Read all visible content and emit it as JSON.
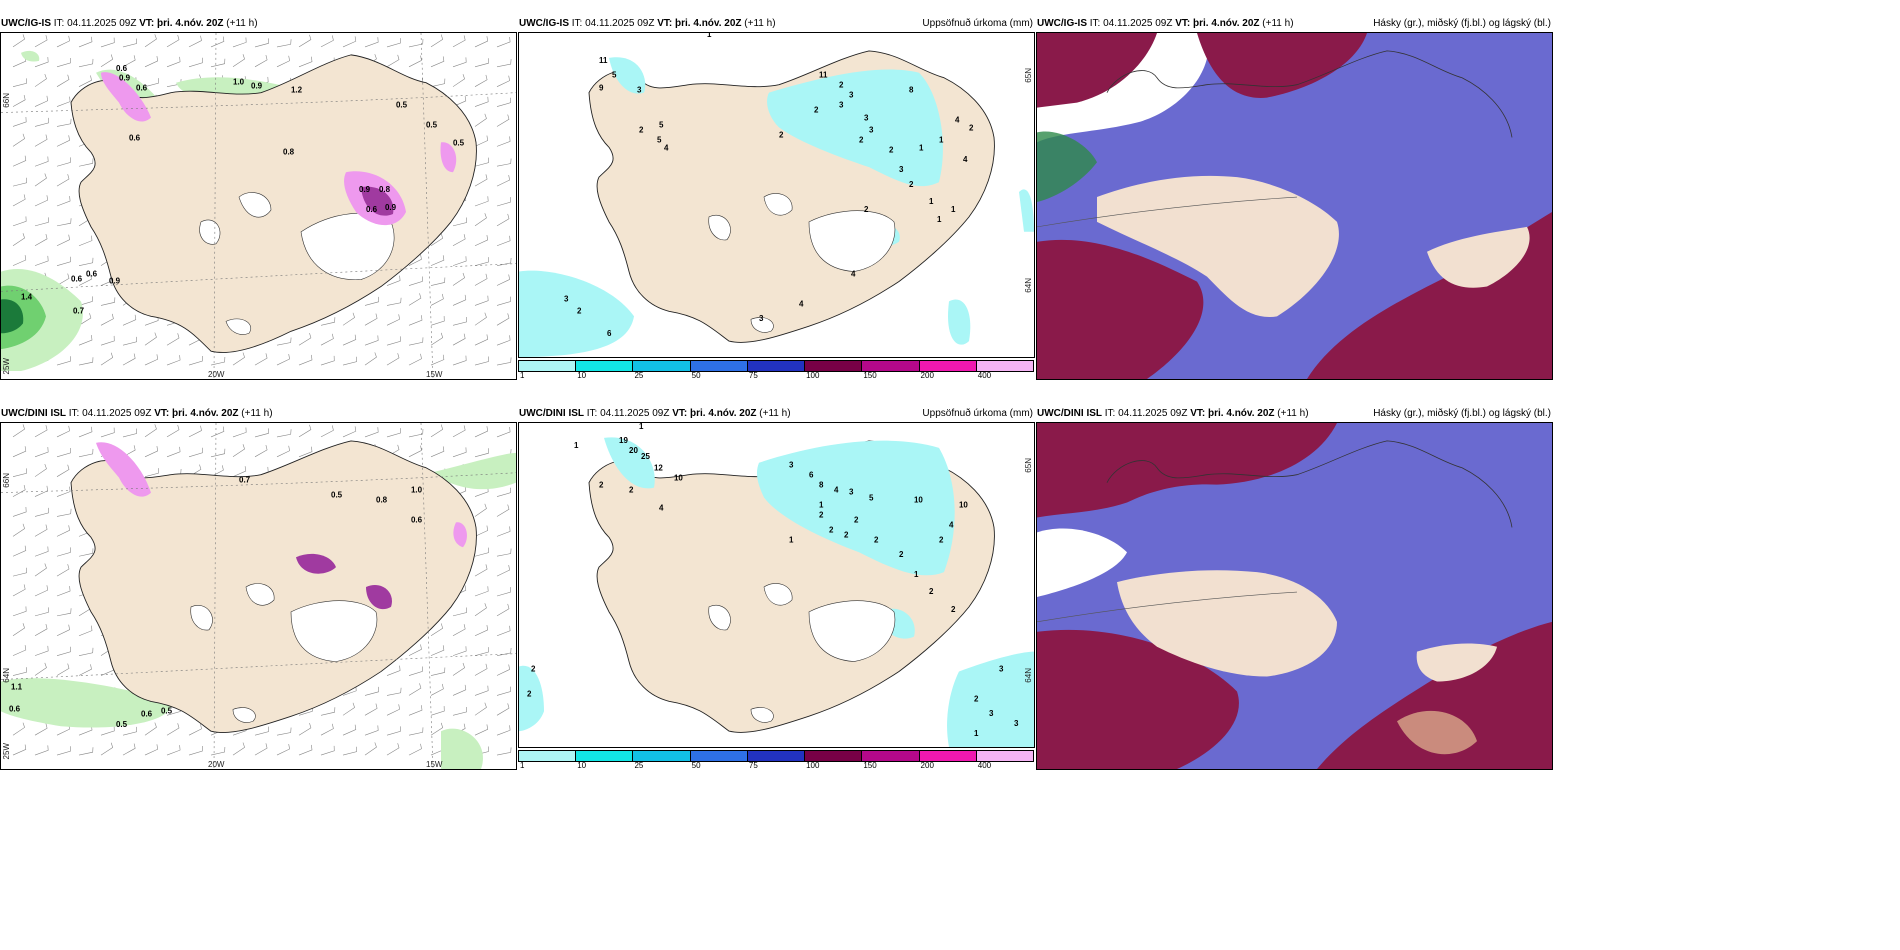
{
  "colors": {
    "land": "#f3e5d2",
    "ice": "#ffffff",
    "green_light": "#c8f0c0",
    "green_mid": "#70d070",
    "green_dark": "#1b7a3a",
    "magenta_light": "#ee99ee",
    "magenta_dark": "#a03aa0",
    "cyan_light": "#aaf6f6",
    "cloud_high": "#6a6ad0",
    "cloud_mid": "#8a1a4a",
    "cloud_low": "#f2e0d0"
  },
  "header_common": {
    "it_label": "IT:",
    "it_value": "04.11.2025 09Z",
    "vt_label": "VT:",
    "vt_value": "þri. 4.nóv. 20Z",
    "lead": "(+11 h)"
  },
  "panels": [
    {
      "model": "UWC/IG-IS",
      "right_title": ""
    },
    {
      "model": "UWC/IG-IS",
      "right_title": "Uppsöfnuð úrkoma (mm)"
    },
    {
      "model": "UWC/IG-IS",
      "right_title": "Hásky (gr.), miðský (fj.bl.) og lágský (bl.)"
    },
    {
      "model": "UWC/DINI ISL",
      "right_title": ""
    },
    {
      "model": "UWC/DINI ISL",
      "right_title": "Uppsöfnuð úrkoma (mm)"
    },
    {
      "model": "UWC/DINI ISL",
      "right_title": "Hásky (gr.), miðský (fj.bl.) og lágský (bl.)"
    }
  ],
  "axis_labels": {
    "lat_66": "66N",
    "lat_64": "64N",
    "lon_25": "25W",
    "lon_20": "20W",
    "lon_15": "15W",
    "lat_65": "65N",
    "lat_64b": "64N"
  },
  "colorbar": {
    "ticks": [
      "1",
      "10",
      "25",
      "50",
      "75",
      "100",
      "150",
      "200",
      "400"
    ],
    "colors": [
      "#aef6f6",
      "#12e6e6",
      "#12c0e6",
      "#2e70e6",
      "#2232c0",
      "#780046",
      "#b4088a",
      "#f018b0",
      "#f4b4f4"
    ]
  },
  "precip_labels_top": [
    "0.6",
    "0.9",
    "0.6",
    "1.0",
    "0.9",
    "1.2",
    "0.5",
    "0.5",
    "0.5",
    "0.6",
    "0.8",
    "0.9",
    "0.8",
    "0.6",
    "0.9",
    "0.6",
    "0.6",
    "0.9",
    "1.4",
    "0.7"
  ],
  "precip_labels_bottom": [
    "0.7",
    "0.5",
    "0.8",
    "1.0",
    "0.6",
    "1.1",
    "0.6",
    "0.5",
    "0.6",
    "0.5"
  ],
  "accum_labels_top": [
    "1",
    "11",
    "5",
    "9",
    "3",
    "2",
    "5",
    "5",
    "4",
    "2",
    "2",
    "3",
    "3",
    "3",
    "8",
    "11",
    "2",
    "2",
    "3",
    "2",
    "1",
    "1",
    "4",
    "2",
    "4",
    "3",
    "2",
    "1",
    "1",
    "1",
    "2",
    "4",
    "4",
    "3",
    "3",
    "2",
    "6"
  ],
  "accum_labels_bottom": [
    "1",
    "1",
    "19",
    "20",
    "25",
    "12",
    "10",
    "2",
    "4",
    "2",
    "3",
    "6",
    "8",
    "4",
    "3",
    "5",
    "10",
    "4",
    "2",
    "2",
    "2",
    "2",
    "2",
    "10",
    "1",
    "1",
    "2",
    "2",
    "1",
    "2",
    "2",
    "3",
    "2",
    "3",
    "1",
    "3",
    "2",
    "2"
  ]
}
